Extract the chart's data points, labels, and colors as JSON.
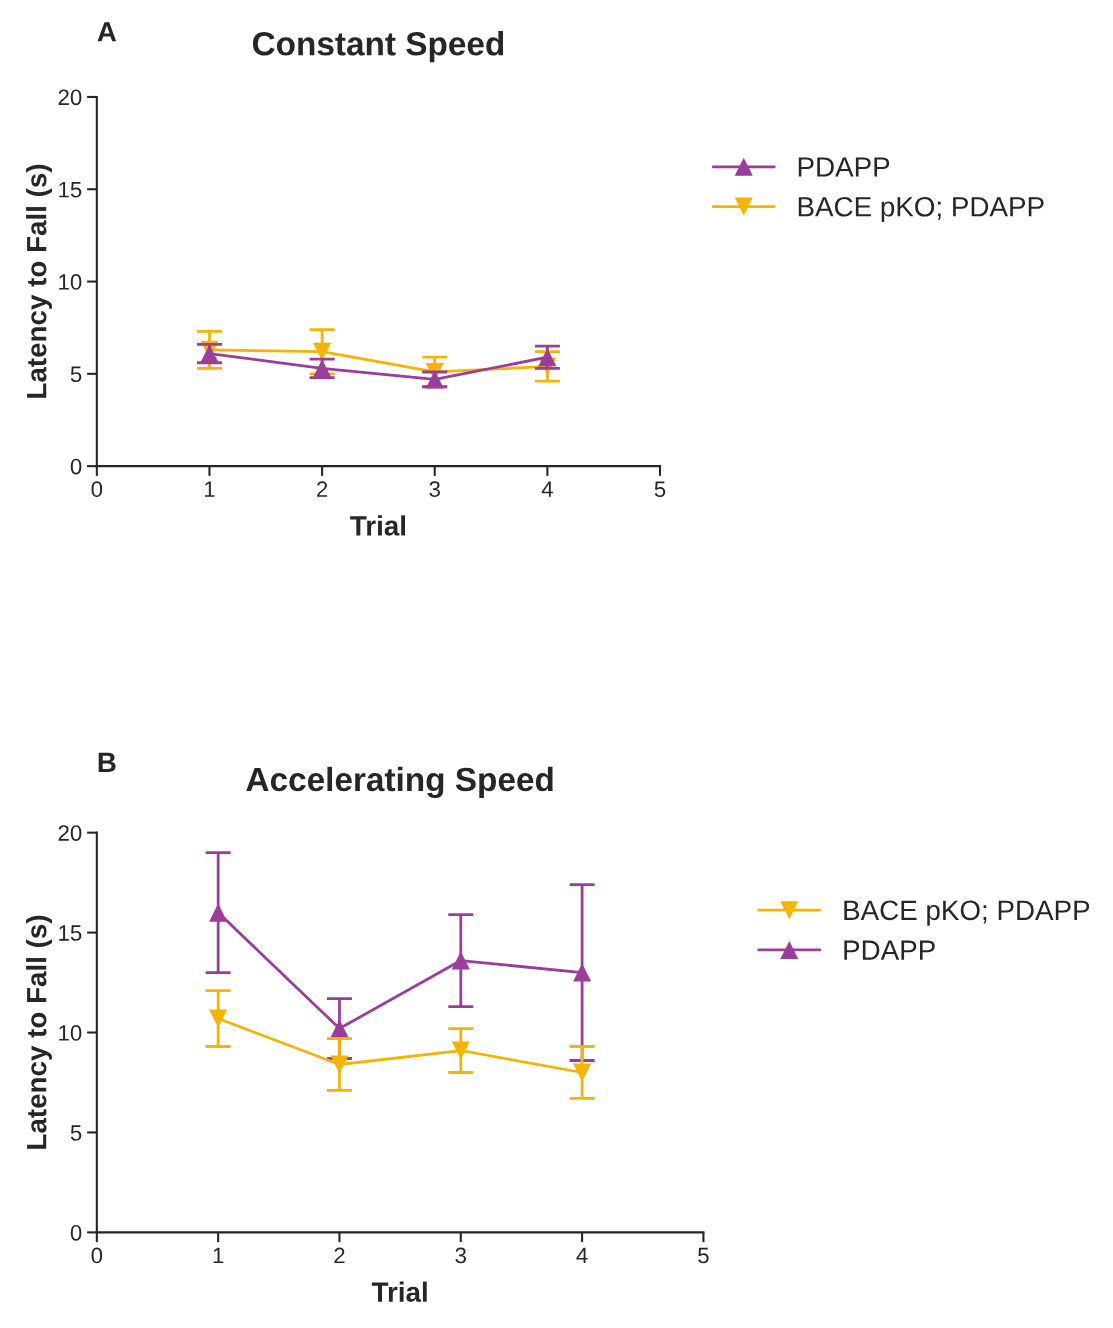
{
  "chart_data": [
    {
      "type": "line",
      "title": "Constant Speed",
      "xlabel": "Trial",
      "ylabel": "Latency to Fall (s)",
      "annotations": [
        "A"
      ],
      "x": [
        1,
        2,
        3,
        4
      ],
      "xlim": [
        0,
        5
      ],
      "xticks": [
        0,
        1,
        2,
        3,
        4,
        5
      ],
      "ylim": [
        0,
        20
      ],
      "yticks": [
        0,
        5,
        10,
        15,
        20
      ],
      "grid": false,
      "legend": "right",
      "series": [
        {
          "name": "PDAPP",
          "color": "#9b3d9b",
          "marker": "triangle",
          "values": [
            6.1,
            5.3,
            4.7,
            5.9
          ],
          "errors": [
            0.5,
            0.5,
            0.4,
            0.6
          ]
        },
        {
          "name": "BACE pKO; PDAPP",
          "color": "#f5b400",
          "marker": "triangle_down",
          "values": [
            6.3,
            6.2,
            5.1,
            5.4
          ],
          "errors": [
            1.0,
            1.2,
            0.8,
            0.8
          ]
        }
      ]
    },
    {
      "type": "line",
      "title": "Accelerating Speed",
      "xlabel": "Trial",
      "ylabel": "Latency to Fall (s)",
      "annotations": [
        "B"
      ],
      "x": [
        1,
        2,
        3,
        4
      ],
      "xlim": [
        0,
        5
      ],
      "xticks": [
        0,
        1,
        2,
        3,
        4,
        5
      ],
      "ylim": [
        0,
        20
      ],
      "yticks": [
        0,
        5,
        10,
        15,
        20
      ],
      "grid": false,
      "legend": "right",
      "series": [
        {
          "name": "BACE pKO; PDAPP",
          "color": "#f5b400",
          "marker": "triangle_down",
          "values": [
            10.7,
            8.4,
            9.1,
            8.0
          ],
          "errors": [
            1.4,
            1.3,
            1.1,
            1.3
          ]
        },
        {
          "name": "PDAPP",
          "color": "#9b3d9b",
          "marker": "triangle",
          "values": [
            16.0,
            10.2,
            13.6,
            13.0
          ],
          "errors": [
            3.0,
            1.5,
            2.3,
            4.4
          ]
        }
      ]
    }
  ]
}
